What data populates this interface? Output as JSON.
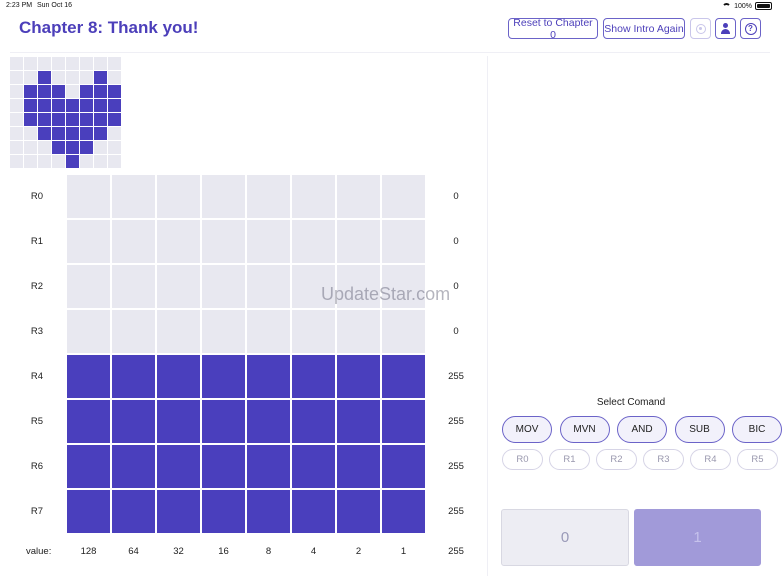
{
  "status_bar": {
    "time": "2:23 PM",
    "date": "Sun Oct 16",
    "battery": "100%"
  },
  "header": {
    "title": "Chapter 8: Thank you!",
    "reset_label": "Reset to Chapter 0",
    "intro_label": "Show Intro Again"
  },
  "preview_pattern": [
    [
      0,
      0,
      0,
      0,
      0,
      0,
      0,
      0
    ],
    [
      0,
      0,
      1,
      0,
      0,
      0,
      1,
      0
    ],
    [
      0,
      1,
      1,
      1,
      0,
      1,
      1,
      1
    ],
    [
      0,
      1,
      1,
      1,
      1,
      1,
      1,
      1
    ],
    [
      0,
      1,
      1,
      1,
      1,
      1,
      1,
      1
    ],
    [
      0,
      0,
      1,
      1,
      1,
      1,
      1,
      0
    ],
    [
      0,
      0,
      0,
      1,
      1,
      1,
      0,
      0
    ],
    [
      0,
      0,
      0,
      0,
      1,
      0,
      0,
      0
    ]
  ],
  "registers": [
    {
      "label": "R0",
      "value": "0"
    },
    {
      "label": "R1",
      "value": "0"
    },
    {
      "label": "R2",
      "value": "0"
    },
    {
      "label": "R3",
      "value": "0"
    },
    {
      "label": "R4",
      "value": "255"
    },
    {
      "label": "R5",
      "value": "255"
    },
    {
      "label": "R6",
      "value": "255"
    },
    {
      "label": "R7",
      "value": "255"
    }
  ],
  "bit_values": {
    "label": "value:",
    "columns": [
      "128",
      "64",
      "32",
      "16",
      "8",
      "4",
      "2",
      "1"
    ],
    "total": "255"
  },
  "watermark": "UpdateStar.com",
  "command_panel": {
    "title": "Select Comand",
    "commands": [
      "MOV",
      "MVN",
      "AND",
      "SUB",
      "BIC"
    ],
    "registers": [
      "R0",
      "R1",
      "R2",
      "R3",
      "R4",
      "R5"
    ],
    "bit_buttons": [
      "0",
      "1"
    ]
  },
  "colors": {
    "accent": "#4c3fba",
    "cell_on": "#4a3fbd",
    "cell_off": "#e8e8f0"
  }
}
